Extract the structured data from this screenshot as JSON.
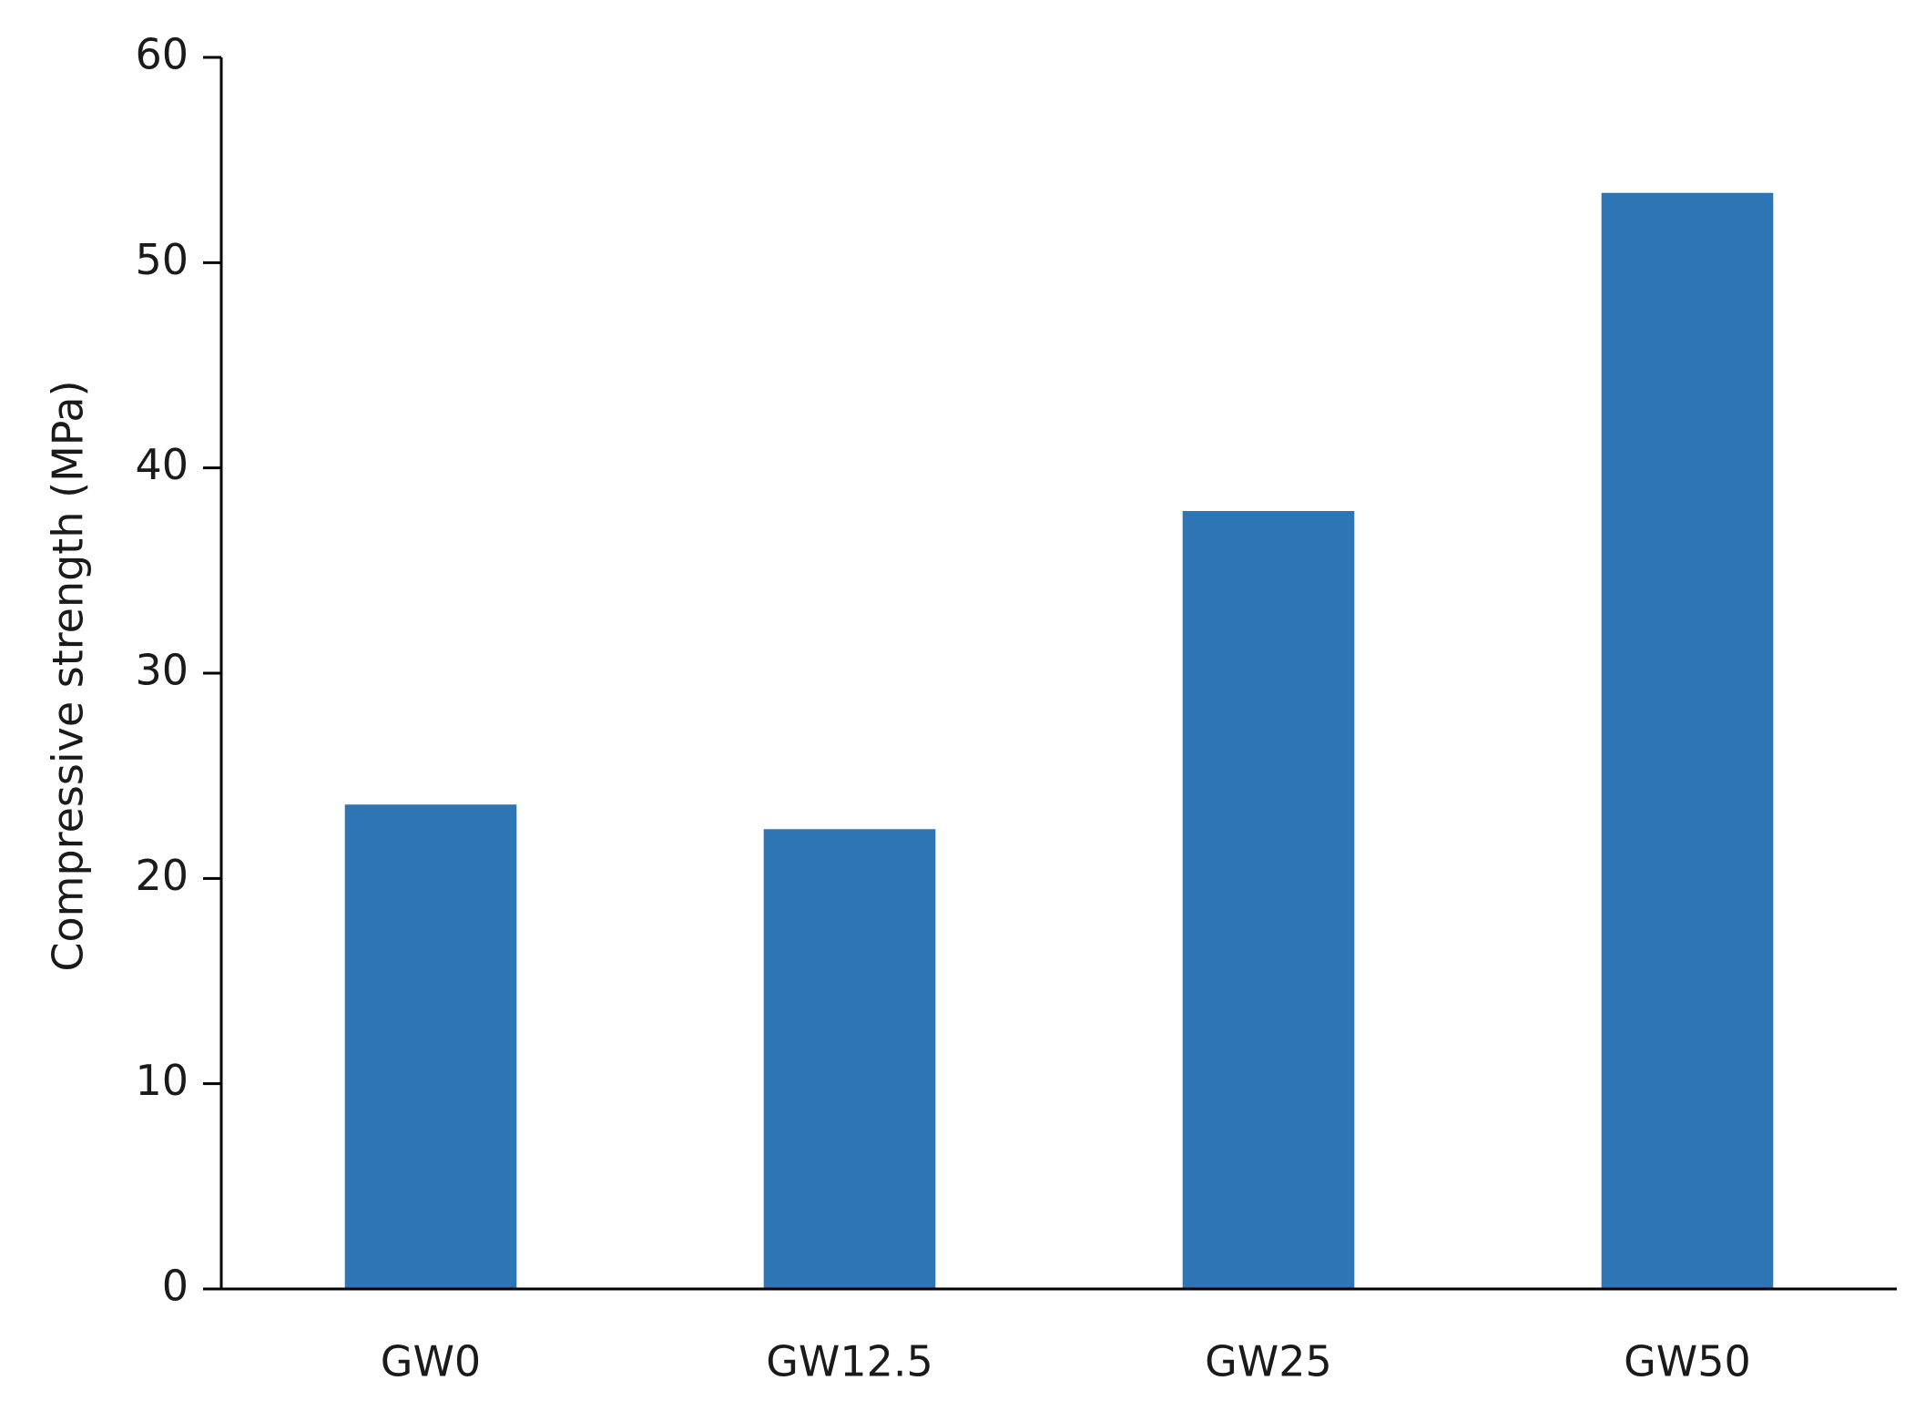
{
  "chart_data": {
    "type": "bar",
    "y_label": "Compressive strength (MPa)",
    "categories": [
      "GW0",
      "GW12.5",
      "GW25",
      "GW50"
    ],
    "values": [
      23.6,
      22.4,
      37.9,
      53.4
    ],
    "color": "#2e75b6",
    "ylim": [
      0,
      60
    ],
    "yticks": [
      0,
      10,
      20,
      30,
      40,
      50,
      60
    ],
    "grid": false
  }
}
